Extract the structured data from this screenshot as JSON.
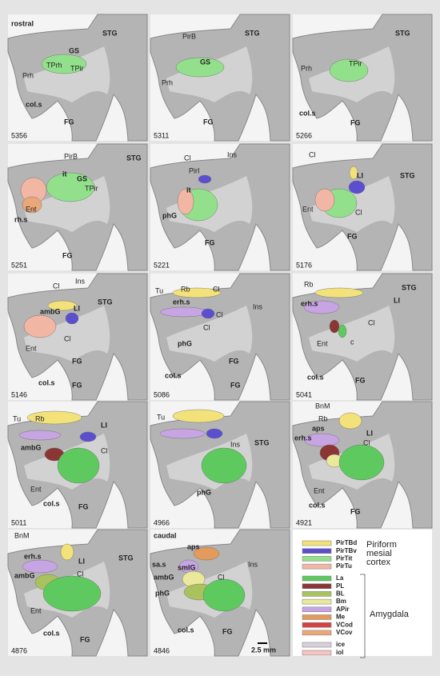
{
  "panels": [
    {
      "number": "5356",
      "labels": [
        "rostral",
        "STG",
        "GS",
        "TPrh",
        "TPir",
        "Prh",
        "col.s",
        "FG"
      ]
    },
    {
      "number": "5311",
      "labels": [
        "PirB",
        "STG",
        "GS",
        "Prh",
        "FG"
      ]
    },
    {
      "number": "5266",
      "labels": [
        "STG",
        "TPir",
        "Prh",
        "col.s",
        "FG"
      ]
    },
    {
      "number": "5251",
      "labels": [
        "PirB",
        "it",
        "GS",
        "TPir",
        "Ent",
        "rh.s",
        "FG",
        "STG"
      ]
    },
    {
      "number": "5221",
      "labels": [
        "Cl",
        "Ins",
        "PirI",
        "it",
        "phG",
        "FG"
      ]
    },
    {
      "number": "5176",
      "labels": [
        "Cl",
        "LI",
        "STG",
        "Ent",
        "Cl",
        "FG"
      ]
    },
    {
      "number": "5146",
      "labels": [
        "Cl",
        "Ins",
        "LI",
        "STG",
        "ambG",
        "Ent",
        "Cl",
        "FG",
        "col.s",
        "FG"
      ]
    },
    {
      "number": "5086",
      "labels": [
        "Tu",
        "Rb",
        "Cl",
        "Ins",
        "erh.s",
        "Cl",
        "Cl",
        "phG",
        "FG",
        "col.s",
        "FG"
      ]
    },
    {
      "number": "5041",
      "labels": [
        "Rb",
        "STG",
        "erh.s",
        "LI",
        "Cl",
        "Ent",
        "c",
        "col.s",
        "FG"
      ]
    },
    {
      "number": "5011",
      "labels": [
        "Tu",
        "Rb",
        "LI",
        "ambG",
        "Cl",
        "Ent",
        "col.s",
        "FG"
      ]
    },
    {
      "number": "4966",
      "labels": [
        "Tu",
        "Ins",
        "STG",
        "phG"
      ]
    },
    {
      "number": "4921",
      "labels": [
        "BnM",
        "Rb",
        "aps",
        "LI",
        "erh.s",
        "Cl",
        "Ent",
        "col.s",
        "FG"
      ]
    },
    {
      "number": "4876",
      "labels": [
        "BnM",
        "erh.s",
        "LI",
        "STG",
        "ambG",
        "Cl",
        "Ent",
        "col.s",
        "FG"
      ]
    },
    {
      "number": "4846",
      "labels": [
        "caudal",
        "aps",
        "Ins",
        "sa.s",
        "smlG",
        "Cl",
        "ambG",
        "phG",
        "col.s",
        "FG"
      ]
    }
  ],
  "scale_bar": "2.5 mm",
  "legend": {
    "piriform": {
      "title_lines": [
        "Piriform",
        "mesial",
        "cortex"
      ],
      "items": [
        {
          "name": "PirTBd",
          "color": "#f3e27a"
        },
        {
          "name": "PirTBv",
          "color": "#5b4fd0"
        },
        {
          "name": "PirTit",
          "color": "#92e08c"
        },
        {
          "name": "PirTu",
          "color": "#f2b6a4"
        }
      ]
    },
    "amygdala": {
      "title": "Amygdala",
      "items": [
        {
          "name": "La",
          "color": "#5ec95e"
        },
        {
          "name": "PL",
          "color": "#8b3535"
        },
        {
          "name": "BL",
          "color": "#a9c25e"
        },
        {
          "name": "Bm",
          "color": "#eae89a"
        },
        {
          "name": "APir",
          "color": "#c7a4e2"
        },
        {
          "name": "Me",
          "color": "#e49a5a"
        },
        {
          "name": "VCod",
          "color": "#d64242"
        },
        {
          "name": "VCov",
          "color": "#eaa77a"
        }
      ]
    },
    "other": [
      {
        "name": "ice",
        "color": "#d8d0d8"
      },
      {
        "name": "iol",
        "color": "#f4c4c0"
      }
    ]
  }
}
